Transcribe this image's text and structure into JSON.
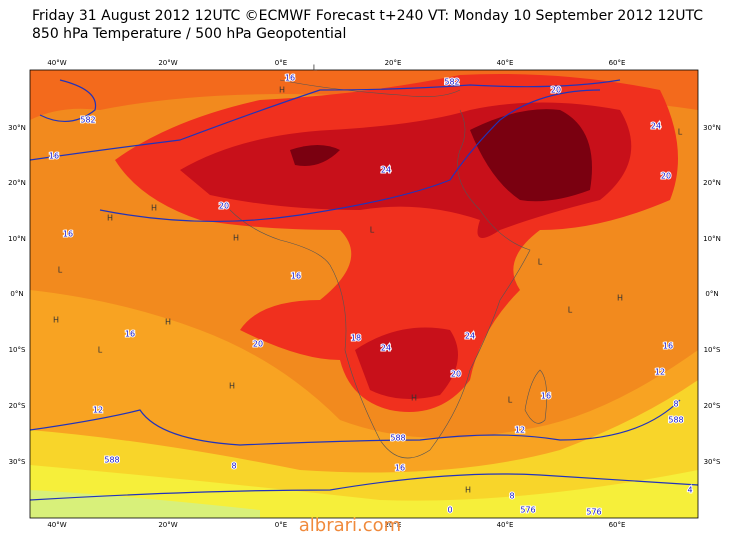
{
  "header": {
    "title": "Friday 31 August 2012 12UTC ©ECMWF Forecast t+240 VT: Monday 10 September 2012 12UTC",
    "subtitle": "850 hPa Temperature / 500 hPa Geopotential"
  },
  "map": {
    "lon_labels": [
      "40°W",
      "20°W",
      "0°E",
      "20°E",
      "40°E",
      "60°E"
    ],
    "lat_labels": [
      "30°N",
      "20°N",
      "10°N",
      "0°N",
      "10°S",
      "20°S",
      "30°S"
    ],
    "contour_labels": [
      "16",
      "582",
      "20",
      "582",
      "16",
      "24",
      "20",
      "16",
      "16",
      "16",
      "20",
      "18",
      "24",
      "24",
      "20",
      "16",
      "16",
      "12",
      "12",
      "588",
      "8",
      "588",
      "16",
      "12",
      "8",
      "588",
      "4",
      "0",
      "8",
      "576",
      "576",
      "24",
      "20"
    ],
    "pressure_markers": [
      "H",
      "L",
      "H",
      "L",
      "H",
      "H",
      "L",
      "H",
      "L",
      "H",
      "L",
      "H",
      "L",
      "H",
      "L",
      "H",
      "H",
      "L"
    ]
  },
  "watermark": "albrari.com"
}
